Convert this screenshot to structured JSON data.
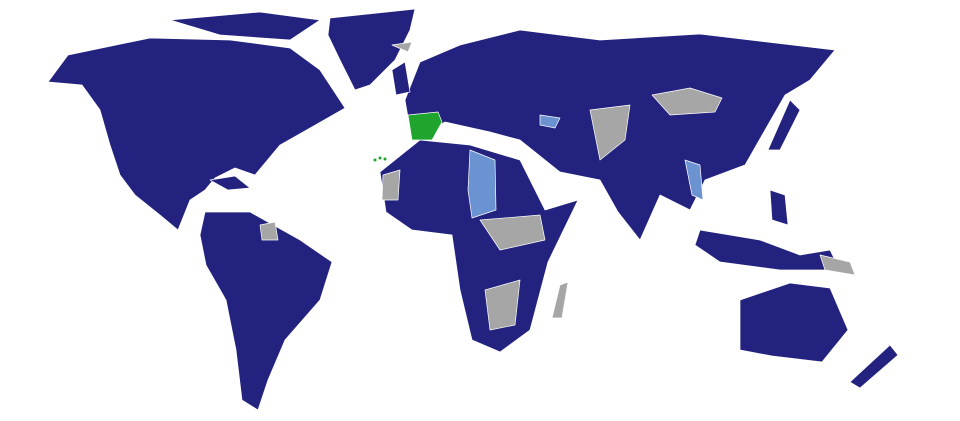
{
  "map": {
    "colors": {
      "primary": "#23237f",
      "highlight": "#1fa52d",
      "secondary": "#6b93d2",
      "none": "#a6a6a6",
      "background": "#ffffff",
      "border": "#ffffff"
    }
  }
}
